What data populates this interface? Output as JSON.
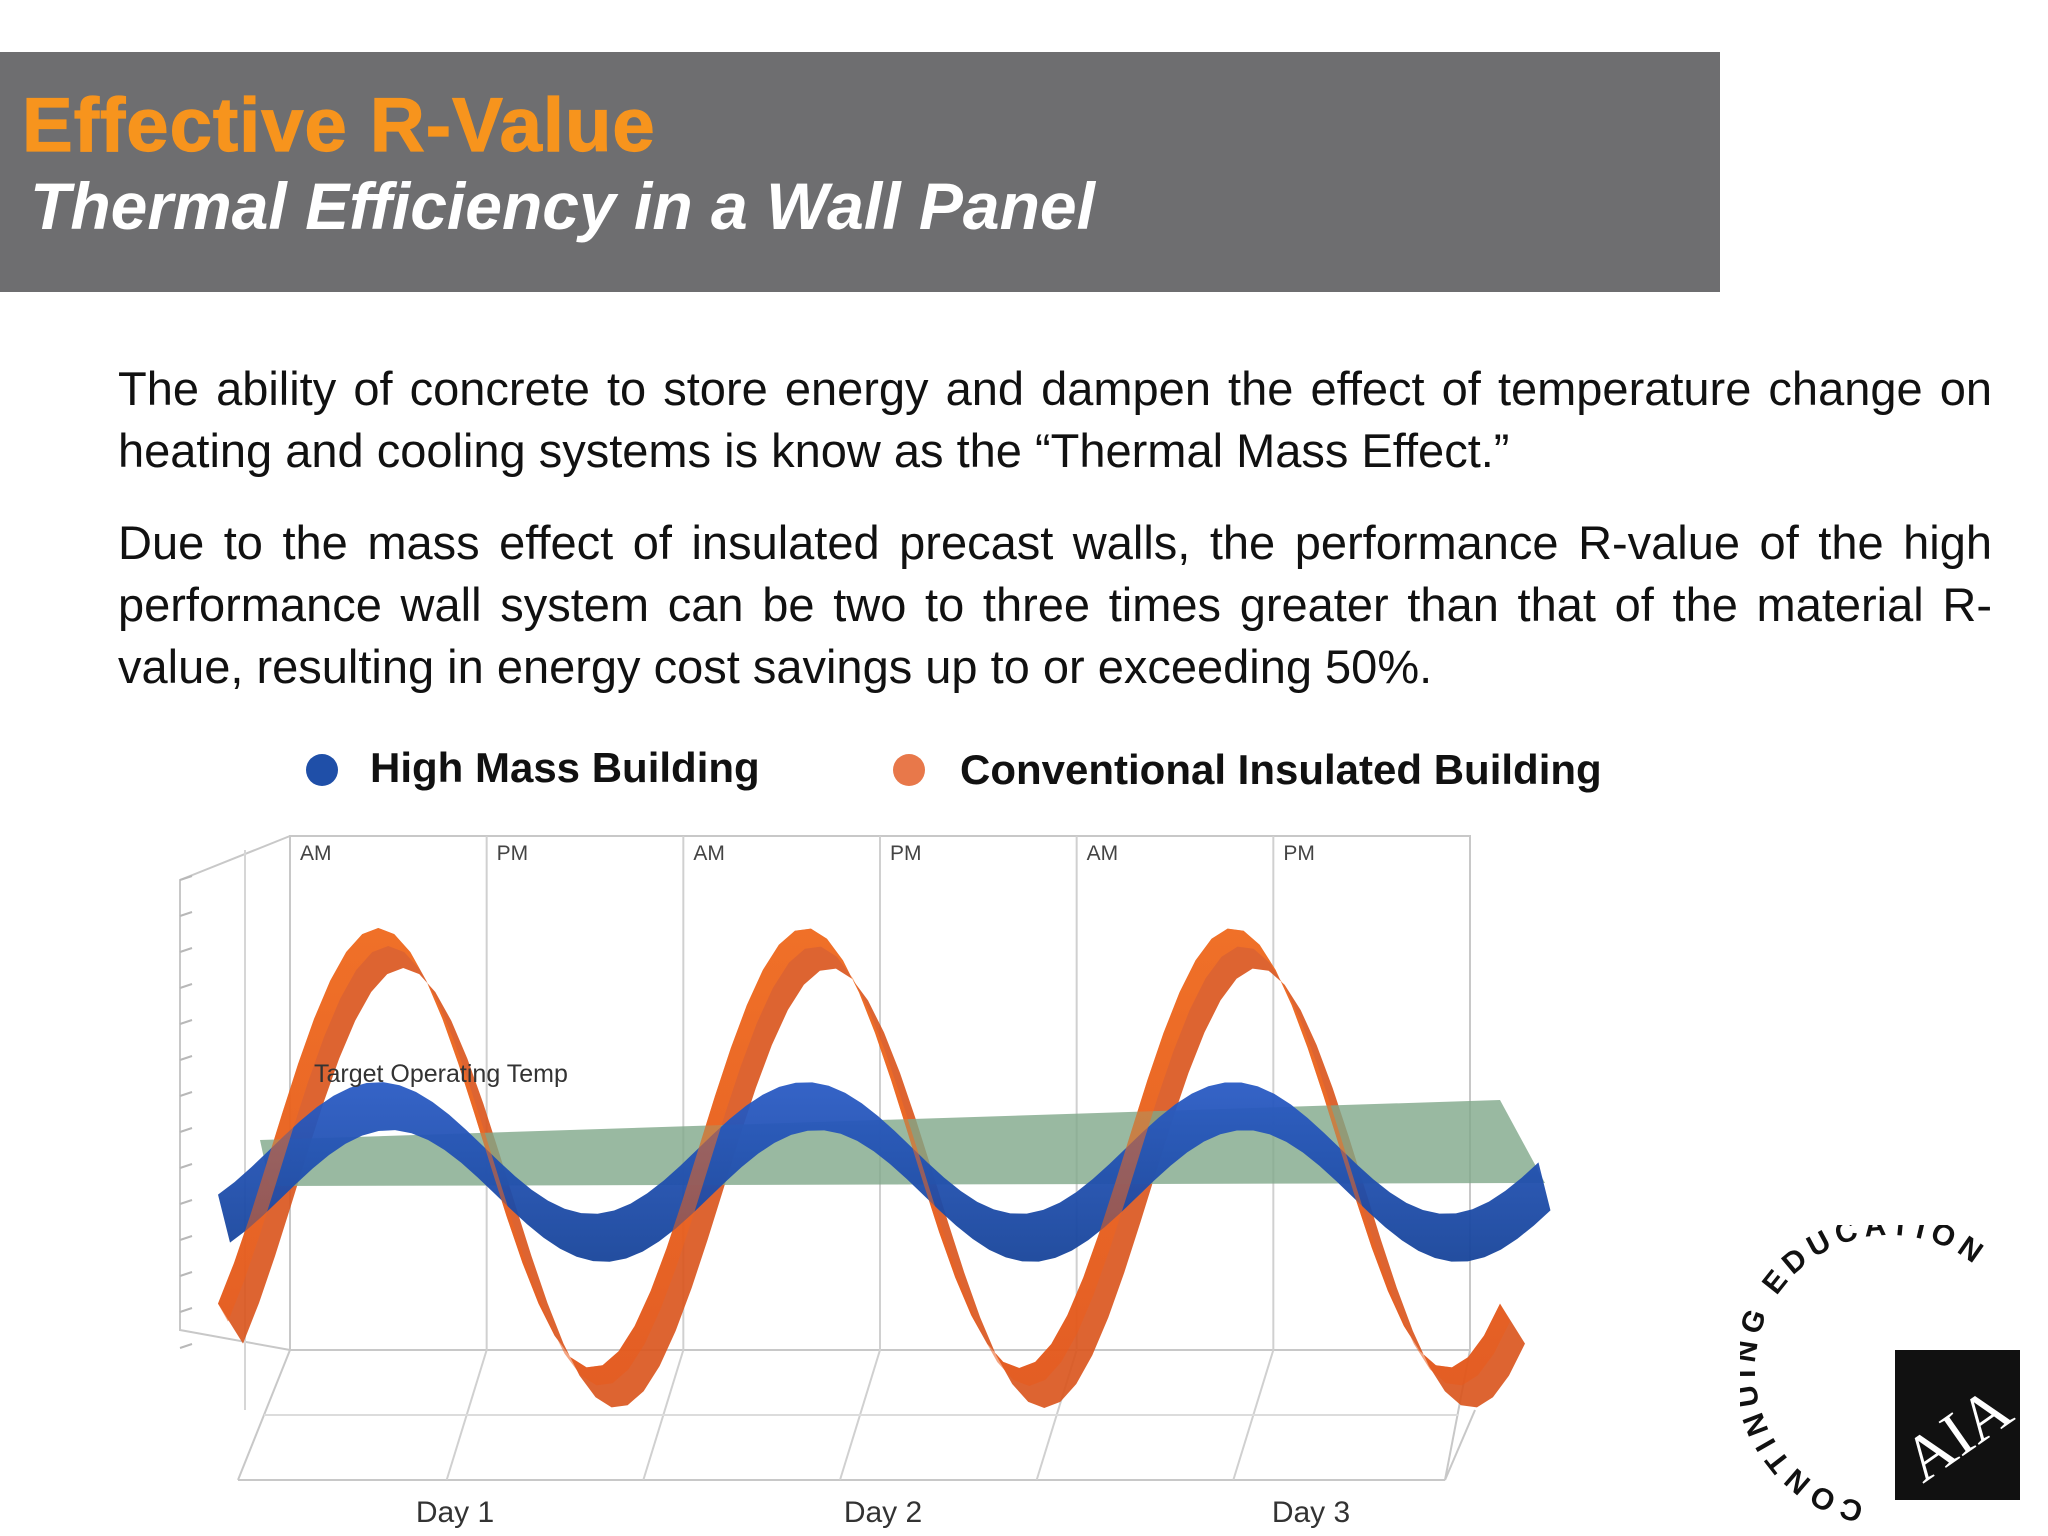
{
  "header": {
    "title": "Effective R-Value",
    "subtitle": "Thermal Efficiency in a Wall Panel"
  },
  "body": {
    "paragraph_1": "The ability of concrete to store energy and dampen the effect of temperature change on heating and cooling systems is know as the “Thermal Mass Effect.”",
    "paragraph_2": "Due to the mass effect of insulated precast walls, the performance R-value of the high performance wall system can be two to three times greater than that of the material R-value, resulting in energy cost savings up to or exceeding 50%."
  },
  "legend": [
    {
      "label": "High Mass Building",
      "color": "#1f4fa8"
    },
    {
      "label": "Conventional Insulated Building",
      "color": "#e8784a"
    }
  ],
  "chart_data": {
    "type": "area",
    "x_periods": [
      "AM",
      "PM",
      "AM",
      "PM",
      "AM",
      "PM"
    ],
    "day_labels": [
      "Day 1",
      "Day 2",
      "Day 3"
    ],
    "annotation": "Target Operating Temp",
    "target_level": 0,
    "series": [
      {
        "name": "High Mass Building",
        "color": "#1f4fa8",
        "amplitude": 0.3,
        "cycles": 3
      },
      {
        "name": "Conventional Insulated Building",
        "color": "#f26a1f",
        "amplitude": 1.0,
        "cycles": 3
      }
    ],
    "plane_color": "#7fa88a"
  },
  "seal": {
    "ring_text": "CONTINUING EDUCATION",
    "mark": "AIA"
  }
}
